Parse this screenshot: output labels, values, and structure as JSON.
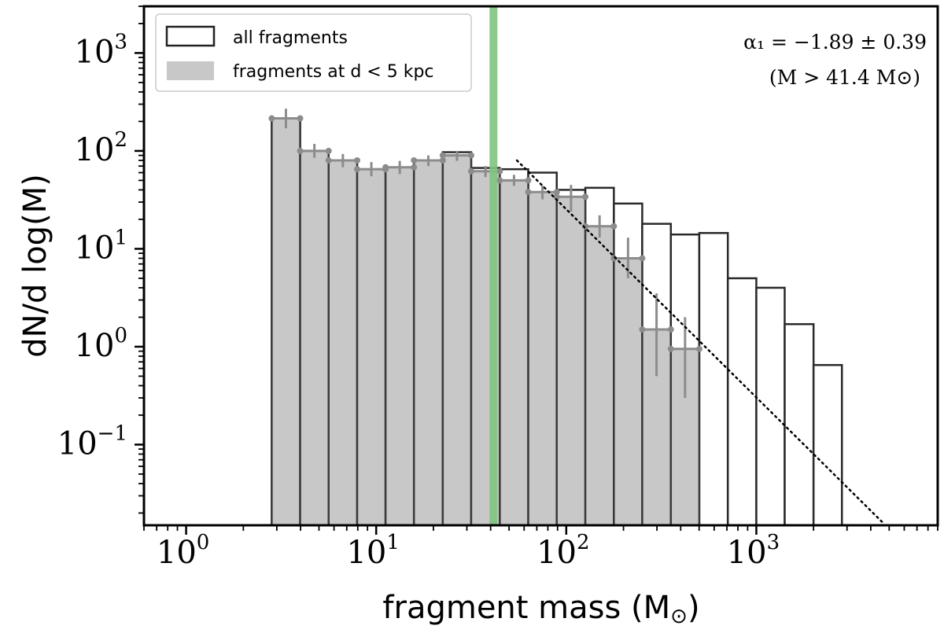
{
  "chart_data": {
    "type": "bar",
    "scale": {
      "x": "log",
      "y": "log"
    },
    "xlabel": "fragment mass (M",
    "xlabel_unit_symbol": "⊙",
    "xlabel_close": ")",
    "ylabel": "dN/d log(M)",
    "xlim": [
      0.6,
      9000
    ],
    "ylim": [
      0.015,
      3000
    ],
    "x_ticks": [
      {
        "base": "10",
        "exp": "0",
        "value": 1
      },
      {
        "base": "10",
        "exp": "1",
        "value": 10
      },
      {
        "base": "10",
        "exp": "2",
        "value": 100
      },
      {
        "base": "10",
        "exp": "3",
        "value": 1000
      }
    ],
    "y_ticks": [
      {
        "base": "10",
        "exp": "−1",
        "value": 0.1
      },
      {
        "base": "10",
        "exp": "0",
        "value": 1
      },
      {
        "base": "10",
        "exp": "1",
        "value": 10
      },
      {
        "base": "10",
        "exp": "2",
        "value": 100
      },
      {
        "base": "10",
        "exp": "3",
        "value": 1000
      }
    ],
    "bin_edges": [
      2.82,
      3.98,
      5.62,
      7.94,
      11.2,
      15.8,
      22.4,
      31.6,
      44.7,
      63.1,
      89.1,
      126,
      178,
      251,
      355,
      501,
      708,
      1000,
      1410,
      2000,
      2820,
      3980
    ],
    "series": [
      {
        "name": "all fragments",
        "style": "outline",
        "values": [
          215,
          100,
          80,
          65,
          68,
          80,
          97,
          67,
          65,
          60,
          40,
          42,
          29,
          18,
          14,
          14.5,
          5,
          4,
          1.7,
          0.65,
          null
        ]
      },
      {
        "name": "fragments at d < 5 kpc",
        "style": "filled",
        "values": [
          215,
          100,
          80,
          65,
          68,
          80,
          90,
          62,
          50,
          38,
          34,
          17,
          8,
          1.5,
          0.95,
          null,
          null,
          null,
          null,
          null,
          null
        ],
        "errors": [
          [
            170,
            270
          ],
          [
            85,
            118
          ],
          [
            68,
            93
          ],
          [
            55,
            77
          ],
          [
            58,
            79
          ],
          [
            70,
            90
          ],
          [
            79,
            100
          ],
          [
            54,
            70
          ],
          [
            44,
            57
          ],
          [
            32,
            44
          ],
          [
            24,
            45
          ],
          [
            13,
            22
          ],
          [
            5,
            13
          ],
          [
            0.5,
            3.5
          ],
          [
            0.3,
            2
          ]
        ]
      }
    ],
    "threshold": {
      "value": 41.4,
      "color": "#7dc47d"
    },
    "fit": {
      "x_start": 55,
      "y_start": 80,
      "x_end": 4700,
      "y_end": 0.0155,
      "style": "dotted"
    },
    "legend": {
      "placement": "top-left",
      "entries": [
        {
          "label": "all fragments",
          "swatch": "outline"
        },
        {
          "label": "fragments at d < 5 kpc",
          "swatch": "filled"
        }
      ]
    },
    "annotations": {
      "placement": "top-right",
      "line1": "α₁ = −1.89 ± 0.39",
      "line2": "(M > 41.4 M⊙)"
    }
  },
  "colors": {
    "filled": "#c8c8c8",
    "edge": "#3a3a3a",
    "error": "#8c8c8c",
    "threshold": "#7dc47d"
  }
}
